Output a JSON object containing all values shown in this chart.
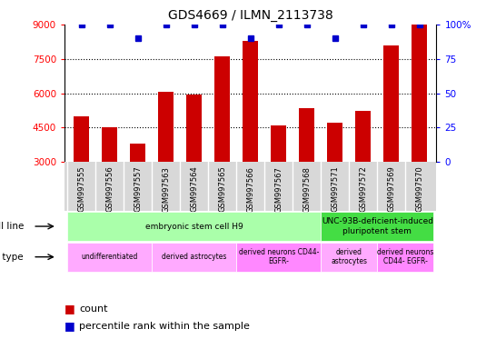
{
  "title": "GDS4669 / ILMN_2113738",
  "samples": [
    "GSM997555",
    "GSM997556",
    "GSM997557",
    "GSM997563",
    "GSM997564",
    "GSM997565",
    "GSM997566",
    "GSM997567",
    "GSM997568",
    "GSM997571",
    "GSM997572",
    "GSM997569",
    "GSM997570"
  ],
  "counts": [
    5000,
    4500,
    3800,
    6050,
    5950,
    7600,
    8300,
    4600,
    5350,
    4700,
    5250,
    8100,
    9000
  ],
  "percentile": [
    100,
    100,
    90,
    100,
    100,
    100,
    90,
    100,
    100,
    90,
    100,
    100,
    100
  ],
  "ymin": 3000,
  "ymax": 9000,
  "yticks": [
    3000,
    4500,
    6000,
    7500,
    9000
  ],
  "ytick_labels_left": [
    "3000",
    "4500",
    "6000",
    "7500",
    "9000"
  ],
  "right_yticks": [
    0,
    25,
    50,
    75,
    100
  ],
  "right_ytick_labels": [
    "0",
    "25",
    "50",
    "75",
    "100%"
  ],
  "bar_color": "#cc0000",
  "percentile_color": "#0000cc",
  "bg_gray": "#d8d8d8",
  "cell_line_groups": [
    {
      "label": "embryonic stem cell H9",
      "start": 0,
      "end": 9,
      "color": "#aaffaa"
    },
    {
      "label": "UNC-93B-deficient-induced\npluripotent stem",
      "start": 9,
      "end": 13,
      "color": "#44dd44"
    }
  ],
  "cell_type_groups": [
    {
      "label": "undifferentiated",
      "start": 0,
      "end": 3,
      "color": "#ffaaff"
    },
    {
      "label": "derived astrocytes",
      "start": 3,
      "end": 6,
      "color": "#ffaaff"
    },
    {
      "label": "derived neurons CD44-\nEGFR-",
      "start": 6,
      "end": 9,
      "color": "#ff88ff"
    },
    {
      "label": "derived\nastrocytes",
      "start": 9,
      "end": 11,
      "color": "#ffaaff"
    },
    {
      "label": "derived neurons\nCD44- EGFR-",
      "start": 11,
      "end": 13,
      "color": "#ff88ff"
    }
  ],
  "legend_count_label": "count",
  "legend_percentile_label": "percentile rank within the sample"
}
